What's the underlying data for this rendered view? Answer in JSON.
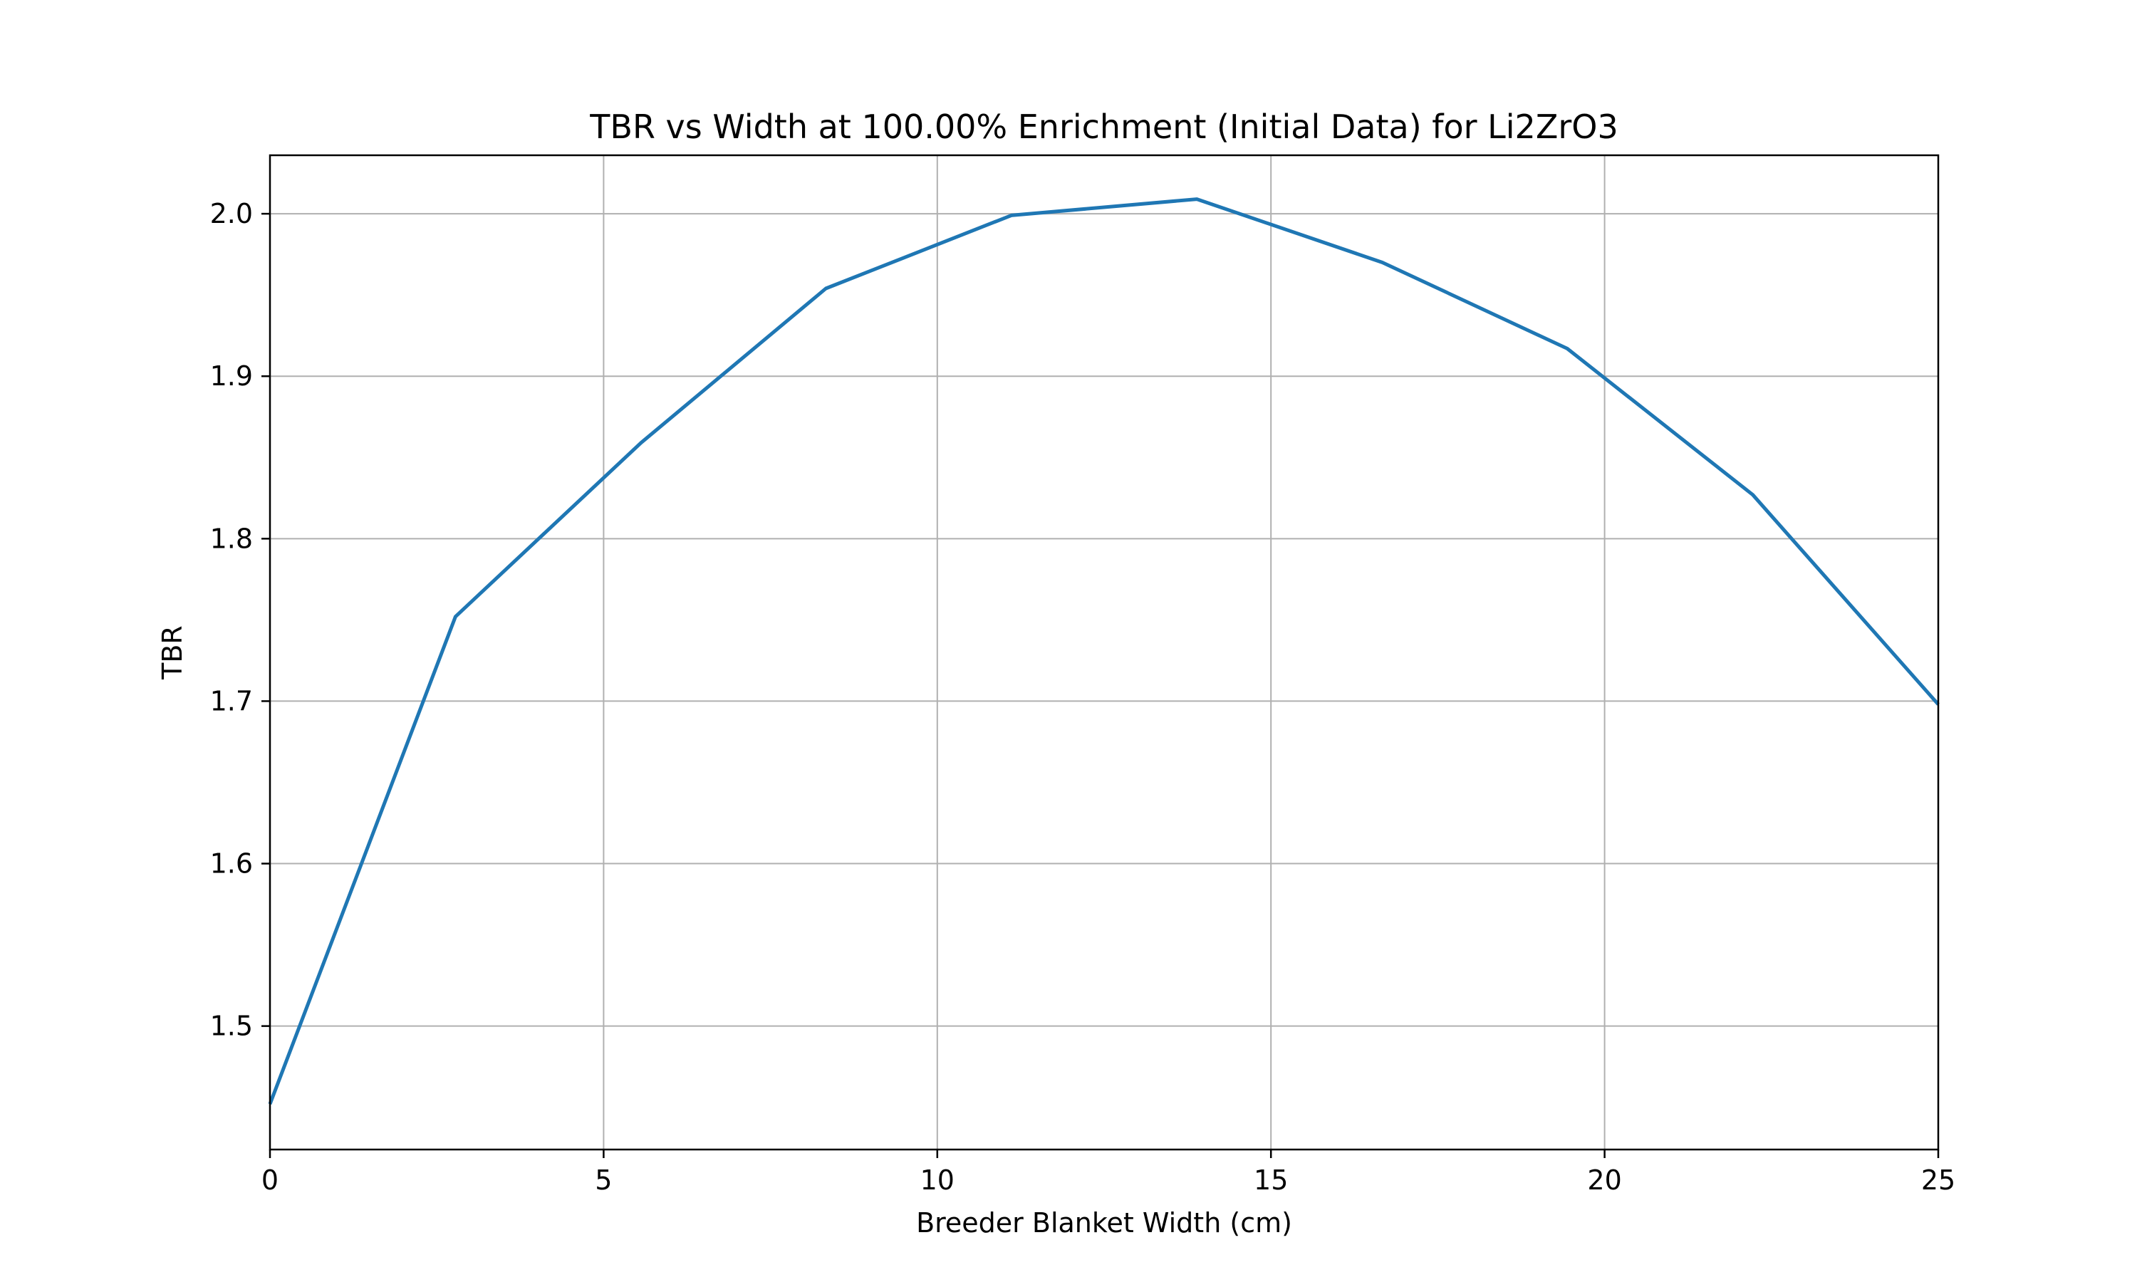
{
  "chart_data": {
    "type": "line",
    "title": "TBR vs Width at 100.00% Enrichment (Initial Data) for Li2ZrO3",
    "xlabel": "Breeder Blanket Width (cm)",
    "ylabel": "TBR",
    "xlim": [
      0,
      25
    ],
    "ylim": [
      1.424,
      2.036
    ],
    "x_ticks": [
      0,
      5,
      10,
      15,
      20,
      25
    ],
    "x_tick_labels": [
      "0",
      "5",
      "10",
      "15",
      "20",
      "25"
    ],
    "y_ticks": [
      1.5,
      1.6,
      1.7,
      1.8,
      1.9,
      2.0
    ],
    "y_tick_labels": [
      "1.5",
      "1.6",
      "1.7",
      "1.8",
      "1.9",
      "2.0"
    ],
    "grid": true,
    "legend": "none",
    "series": [
      {
        "color": "#1f77b4",
        "x": [
          0,
          2.78,
          5.56,
          8.33,
          11.11,
          13.89,
          16.67,
          19.44,
          22.22,
          25
        ],
        "y": [
          1.452,
          1.752,
          1.859,
          1.954,
          1.999,
          2.009,
          1.97,
          1.917,
          1.827,
          1.698
        ]
      }
    ]
  }
}
